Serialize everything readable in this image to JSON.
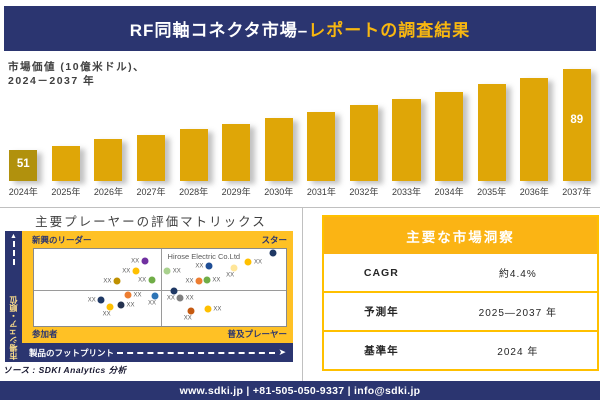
{
  "title": {
    "main": "RF同軸コネクタ市場–",
    "accent": "レポートの調査結果"
  },
  "chart_data": [
    {
      "type": "bar",
      "title": "市場価値 (10億米ドル)、2024－2037 年",
      "caption_line1": "市場価値 (10億米ドル)、",
      "caption_line2": "2024－2037 年",
      "categories": [
        "2024年",
        "2025年",
        "2026年",
        "2027年",
        "2028年",
        "2029年",
        "2030年",
        "2031年",
        "2032年",
        "2033年",
        "2034年",
        "2035年",
        "2036年",
        "2037年"
      ],
      "values": [
        51,
        53,
        56,
        58,
        61,
        63,
        66,
        69,
        72,
        75,
        78,
        82,
        85,
        89
      ],
      "labeled_values": {
        "2024年": 51,
        "2037年": 89
      },
      "unit": "10億米ドル",
      "bar_color": "#DFA607",
      "first_bar_color": "#B1910D",
      "legend_position": "none",
      "grid": false
    },
    {
      "type": "scatter",
      "title": "主要プレーヤーの評価マトリックス",
      "xlabel": "製品のフットプリント",
      "ylabel": "市場シェア・順位",
      "quadrants": {
        "top_left": "新興のリーダー",
        "top_right": "スター",
        "bottom_left": "参加者",
        "bottom_right": "普及プレーヤー"
      },
      "annotation": "Hirose Electric  Co.Ltd",
      "point_label": "XX",
      "points": [
        {
          "x": 43.9,
          "y": 15.2,
          "color": "#7030A0",
          "side": "left"
        },
        {
          "x": 40.4,
          "y": 29.1,
          "color": "#FFC000",
          "side": "left"
        },
        {
          "x": 46.7,
          "y": 40.5,
          "color": "#70AD47",
          "side": "left"
        },
        {
          "x": 32.9,
          "y": 41.8,
          "color": "#BF9000",
          "side": "left"
        },
        {
          "x": 37.3,
          "y": 59.5,
          "color": "#ED7D31",
          "side": "right"
        },
        {
          "x": 48.2,
          "y": 60.8,
          "color": "#2E75B6",
          "side": "below"
        },
        {
          "x": 26.7,
          "y": 65.8,
          "color": "#1F3864",
          "side": "left"
        },
        {
          "x": 34.5,
          "y": 72.2,
          "color": "#24324F",
          "side": "right"
        },
        {
          "x": 30.2,
          "y": 75.9,
          "color": "#FFC000",
          "side": "below"
        },
        {
          "x": 52.9,
          "y": 29.1,
          "color": "#A9D18E",
          "side": "right"
        },
        {
          "x": 69.4,
          "y": 21.5,
          "color": "#1F4E95",
          "side": "left"
        },
        {
          "x": 79.2,
          "y": 24.1,
          "color": "#FFE699",
          "side": "below"
        },
        {
          "x": 85.1,
          "y": 16.5,
          "color": "#FFC000",
          "side": "right"
        },
        {
          "x": 94.9,
          "y": 5.1,
          "color": "#1F3864",
          "side": "none"
        },
        {
          "x": 65.5,
          "y": 41.8,
          "color": "#ED7D31",
          "side": "left"
        },
        {
          "x": 68.6,
          "y": 40.5,
          "color": "#70AD47",
          "side": "right"
        },
        {
          "x": 55.7,
          "y": 54.4,
          "color": "#1F3864",
          "side": "below"
        },
        {
          "x": 58.0,
          "y": 63.3,
          "color": "#808080",
          "side": "right"
        },
        {
          "x": 62.4,
          "y": 81.0,
          "color": "#C55A11",
          "side": "below"
        },
        {
          "x": 69.0,
          "y": 78.5,
          "color": "#FFC000",
          "side": "right"
        }
      ]
    },
    {
      "type": "table",
      "title": "主要な市場洞察",
      "rows": [
        {
          "label": "CAGR",
          "value": "約4.4%"
        },
        {
          "label": "予測年",
          "value": "2025—2037 年"
        },
        {
          "label": "基準年",
          "value": "2024 年"
        }
      ]
    }
  ],
  "source": "ソース : SDKI Analytics 分析",
  "footer": "www.sdki.jp | +81-505-050-9337 | info@sdki.jp"
}
